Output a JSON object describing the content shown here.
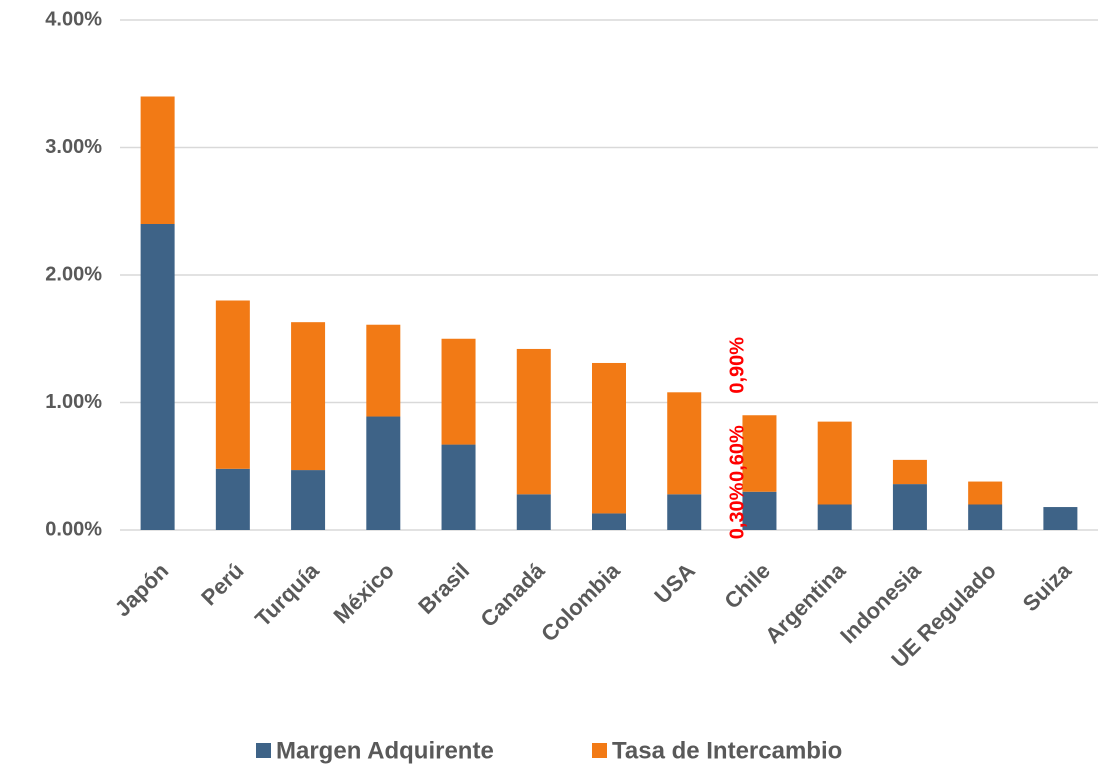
{
  "chart_data": {
    "type": "stacked_bar",
    "categories": [
      "Japón",
      "Perú",
      "Turquía",
      "México",
      "Brasil",
      "Canadá",
      "Colombia",
      "USA",
      "Chile",
      "Argentina",
      "Indonesia",
      "UE Regulado",
      "Suiza"
    ],
    "series": [
      {
        "name": "Margen Adquirente",
        "color": "#3e6387",
        "values": [
          2.4,
          0.48,
          0.47,
          0.89,
          0.67,
          0.28,
          0.13,
          0.28,
          0.3,
          0.2,
          0.36,
          0.2,
          0.18
        ],
        "value_labels": [
          null,
          null,
          null,
          null,
          null,
          null,
          null,
          null,
          "0,30%",
          null,
          null,
          null,
          null
        ]
      },
      {
        "name": "Tasa de Intercambio",
        "color": "#f27a15",
        "values": [
          1.0,
          1.32,
          1.16,
          0.72,
          0.83,
          1.14,
          1.18,
          0.8,
          0.6,
          0.65,
          0.19,
          0.18,
          0
        ],
        "value_labels": [
          null,
          null,
          null,
          null,
          null,
          null,
          null,
          null,
          "0,60%",
          null,
          null,
          null,
          null
        ]
      }
    ],
    "annotations": [
      {
        "category": "Chile",
        "text": "0,90%"
      }
    ],
    "ylim": [
      0,
      4
    ],
    "yticks": [
      {
        "value": 0,
        "label": "0.00%"
      },
      {
        "value": 1,
        "label": "1.00%"
      },
      {
        "value": 2,
        "label": "2.00%"
      },
      {
        "value": 3,
        "label": "3.00%"
      },
      {
        "value": 4,
        "label": "4.00%"
      }
    ],
    "grid": true,
    "legend": "bottom"
  }
}
